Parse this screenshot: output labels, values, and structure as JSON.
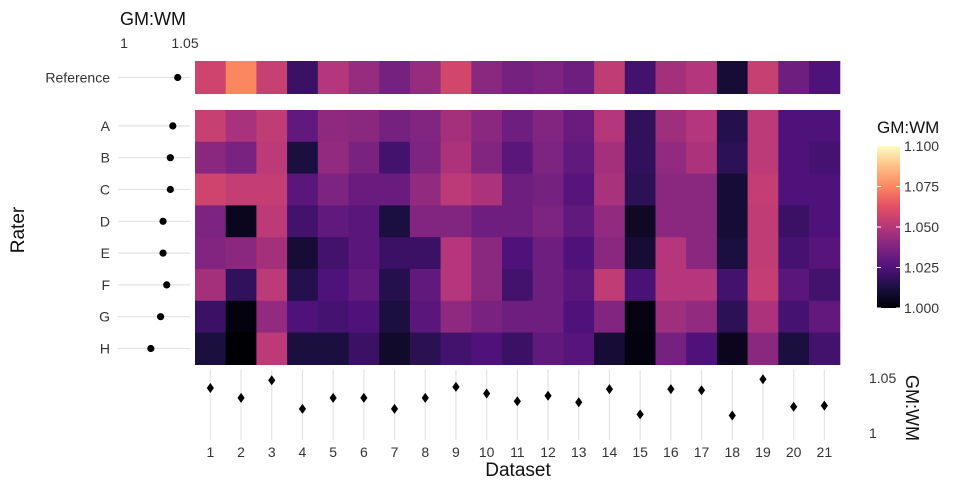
{
  "chart_data": {
    "type": "heatmap",
    "xlabel": "Dataset",
    "ylabel": "Rater",
    "colorbar": {
      "title": "GM:WM",
      "range": [
        1.0,
        1.1
      ],
      "ticks": [
        "1.000",
        "1.025",
        "1.050",
        "1.075",
        "1.100"
      ],
      "colormap": "magma"
    },
    "top_axis": {
      "title": "GM:WM",
      "tick_labels": [
        "1",
        "1.05"
      ],
      "range": [
        1.0,
        1.05
      ]
    },
    "right_axis": {
      "title": "GM:WM",
      "tick_labels": [
        "1.05",
        "1"
      ],
      "range": [
        1.0,
        1.05
      ]
    },
    "datasets": [
      "1",
      "2",
      "3",
      "4",
      "5",
      "6",
      "7",
      "8",
      "9",
      "10",
      "11",
      "12",
      "13",
      "14",
      "15",
      "16",
      "17",
      "18",
      "19",
      "20",
      "21"
    ],
    "reference_label": "Reference",
    "reference": [
      1.057,
      1.075,
      1.055,
      1.02,
      1.05,
      1.043,
      1.035,
      1.043,
      1.058,
      1.04,
      1.035,
      1.037,
      1.033,
      1.053,
      1.022,
      1.046,
      1.05,
      1.01,
      1.055,
      1.033,
      1.025
    ],
    "raters": [
      "A",
      "B",
      "C",
      "D",
      "E",
      "F",
      "G",
      "H"
    ],
    "matrix": [
      [
        1.055,
        1.047,
        1.053,
        1.03,
        1.041,
        1.04,
        1.035,
        1.038,
        1.046,
        1.04,
        1.033,
        1.038,
        1.032,
        1.05,
        1.018,
        1.045,
        1.05,
        1.015,
        1.052,
        1.025,
        1.025
      ],
      [
        1.04,
        1.036,
        1.052,
        1.012,
        1.042,
        1.036,
        1.022,
        1.037,
        1.048,
        1.038,
        1.028,
        1.037,
        1.03,
        1.046,
        1.018,
        1.042,
        1.048,
        1.017,
        1.052,
        1.025,
        1.023
      ],
      [
        1.057,
        1.054,
        1.054,
        1.028,
        1.037,
        1.032,
        1.032,
        1.042,
        1.052,
        1.048,
        1.033,
        1.035,
        1.027,
        1.047,
        1.017,
        1.04,
        1.04,
        1.01,
        1.054,
        1.025,
        1.025
      ],
      [
        1.037,
        1.005,
        1.052,
        1.022,
        1.03,
        1.028,
        1.012,
        1.038,
        1.038,
        1.033,
        1.033,
        1.037,
        1.03,
        1.042,
        1.007,
        1.04,
        1.04,
        1.01,
        1.053,
        1.02,
        1.025
      ],
      [
        1.038,
        1.04,
        1.046,
        1.01,
        1.022,
        1.028,
        1.02,
        1.02,
        1.05,
        1.04,
        1.025,
        1.033,
        1.025,
        1.04,
        1.01,
        1.05,
        1.04,
        1.012,
        1.053,
        1.023,
        1.027
      ],
      [
        1.046,
        1.018,
        1.052,
        1.015,
        1.025,
        1.03,
        1.015,
        1.03,
        1.05,
        1.04,
        1.022,
        1.033,
        1.028,
        1.053,
        1.024,
        1.05,
        1.05,
        1.022,
        1.054,
        1.028,
        1.022
      ],
      [
        1.02,
        1.002,
        1.042,
        1.025,
        1.023,
        1.025,
        1.012,
        1.028,
        1.041,
        1.036,
        1.033,
        1.033,
        1.025,
        1.038,
        1.003,
        1.045,
        1.042,
        1.017,
        1.048,
        1.023,
        1.03
      ],
      [
        1.012,
        1.0,
        1.052,
        1.012,
        1.012,
        1.02,
        1.008,
        1.016,
        1.022,
        1.025,
        1.02,
        1.03,
        1.027,
        1.01,
        1.002,
        1.035,
        1.025,
        1.005,
        1.04,
        1.012,
        1.022
      ]
    ],
    "rater_summary": [
      1.04,
      1.038,
      1.038,
      1.032,
      1.032,
      1.035,
      1.03,
      1.022
    ],
    "reference_summary": [
      1.044
    ],
    "dataset_summary": [
      1.04,
      1.031,
      1.047,
      1.021,
      1.031,
      1.031,
      1.021,
      1.031,
      1.041,
      1.035,
      1.028,
      1.033,
      1.027,
      1.039,
      1.016,
      1.039,
      1.038,
      1.015,
      1.048,
      1.023,
      1.024
    ]
  }
}
